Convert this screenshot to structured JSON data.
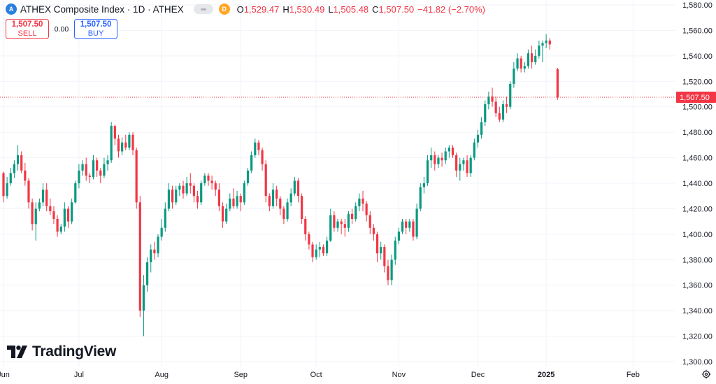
{
  "symbol": {
    "logo_icon": "athex-logo-icon",
    "title": "ATHEX Composite Index · 1D · ATHEX",
    "interval_badge": "D",
    "ohlc": {
      "o_label": "O",
      "o": "1,529.47",
      "h_label": "H",
      "h": "1,530.49",
      "l_label": "L",
      "l": "1,505.48",
      "c_label": "C",
      "c": "1,507.50",
      "change": "−41.82 (−2.70%)"
    }
  },
  "trade": {
    "sell_price": "1,507.50",
    "sell_label": "SELL",
    "spread": "0.00",
    "buy_price": "1,507.50",
    "buy_label": "BUY"
  },
  "watermark": "TradingView",
  "colors": {
    "up": "#089981",
    "down": "#f23645",
    "grid": "#f0f3fa",
    "text": "#131722",
    "brand": "#2962ff"
  },
  "chart_data": {
    "type": "candlestick",
    "title": "ATHEX Composite Index · 1D · ATHEX",
    "ylim": [
      1300,
      1580
    ],
    "y_ticks": [
      1300,
      1320,
      1340,
      1360,
      1380,
      1400,
      1420,
      1440,
      1460,
      1480,
      1500,
      1520,
      1540,
      1560,
      1580
    ],
    "y_tick_labels": [
      "1,300.00",
      "1,320.00",
      "1,340.00",
      "1,360.00",
      "1,380.00",
      "1,400.00",
      "1,420.00",
      "1,440.00",
      "1,460.00",
      "1,480.00",
      "1,500.00",
      "1,520.00",
      "1,540.00",
      "1,560.00",
      "1,580.00"
    ],
    "x_labels": [
      {
        "label": "Jun",
        "index": 0,
        "bold": false
      },
      {
        "label": "Jul",
        "index": 21,
        "bold": false
      },
      {
        "label": "Aug",
        "index": 44,
        "bold": false
      },
      {
        "label": "Sep",
        "index": 66,
        "bold": false
      },
      {
        "label": "Oct",
        "index": 87,
        "bold": false
      },
      {
        "label": "Nov",
        "index": 110,
        "bold": false
      },
      {
        "label": "Dec",
        "index": 132,
        "bold": false
      },
      {
        "label": "2025",
        "index": 151,
        "bold": true
      },
      {
        "label": "Feb",
        "index": 174,
        "bold": false
      }
    ],
    "last_price": 1507.5,
    "last_price_label": "1,507.50",
    "candles": [
      [
        1448,
        1449,
        1425,
        1430
      ],
      [
        1430,
        1445,
        1428,
        1440
      ],
      [
        1440,
        1452,
        1438,
        1448
      ],
      [
        1448,
        1458,
        1444,
        1455
      ],
      [
        1455,
        1470,
        1450,
        1462
      ],
      [
        1462,
        1465,
        1448,
        1450
      ],
      [
        1450,
        1456,
        1438,
        1442
      ],
      [
        1442,
        1444,
        1420,
        1425
      ],
      [
        1425,
        1428,
        1403,
        1408
      ],
      [
        1408,
        1425,
        1395,
        1420
      ],
      [
        1420,
        1428,
        1418,
        1425
      ],
      [
        1425,
        1440,
        1422,
        1435
      ],
      [
        1435,
        1440,
        1418,
        1422
      ],
      [
        1422,
        1428,
        1415,
        1418
      ],
      [
        1418,
        1422,
        1408,
        1412
      ],
      [
        1412,
        1415,
        1398,
        1402
      ],
      [
        1402,
        1408,
        1400,
        1406
      ],
      [
        1406,
        1425,
        1402,
        1420
      ],
      [
        1420,
        1422,
        1405,
        1410
      ],
      [
        1410,
        1428,
        1408,
        1425
      ],
      [
        1425,
        1442,
        1424,
        1440
      ],
      [
        1440,
        1455,
        1436,
        1450
      ],
      [
        1450,
        1458,
        1446,
        1455
      ],
      [
        1455,
        1460,
        1442,
        1446
      ],
      [
        1446,
        1448,
        1440,
        1445
      ],
      [
        1445,
        1462,
        1443,
        1458
      ],
      [
        1458,
        1460,
        1445,
        1450
      ],
      [
        1450,
        1452,
        1440,
        1446
      ],
      [
        1446,
        1460,
        1444,
        1455
      ],
      [
        1455,
        1462,
        1450,
        1458
      ],
      [
        1458,
        1488,
        1456,
        1485
      ],
      [
        1485,
        1486,
        1470,
        1475
      ],
      [
        1475,
        1478,
        1460,
        1465
      ],
      [
        1465,
        1476,
        1462,
        1472
      ],
      [
        1472,
        1478,
        1466,
        1468
      ],
      [
        1468,
        1480,
        1466,
        1478
      ],
      [
        1478,
        1480,
        1462,
        1466
      ],
      [
        1466,
        1468,
        1420,
        1425
      ],
      [
        1425,
        1430,
        1335,
        1340
      ],
      [
        1340,
        1368,
        1320,
        1360
      ],
      [
        1360,
        1382,
        1355,
        1378
      ],
      [
        1378,
        1392,
        1370,
        1388
      ],
      [
        1388,
        1394,
        1380,
        1385
      ],
      [
        1385,
        1400,
        1382,
        1398
      ],
      [
        1398,
        1412,
        1395,
        1405
      ],
      [
        1405,
        1425,
        1402,
        1420
      ],
      [
        1420,
        1440,
        1418,
        1435
      ],
      [
        1435,
        1438,
        1420,
        1425
      ],
      [
        1425,
        1438,
        1423,
        1435
      ],
      [
        1435,
        1440,
        1430,
        1438
      ],
      [
        1438,
        1442,
        1428,
        1432
      ],
      [
        1432,
        1445,
        1430,
        1440
      ],
      [
        1440,
        1448,
        1432,
        1438
      ],
      [
        1438,
        1440,
        1425,
        1430
      ],
      [
        1430,
        1434,
        1420,
        1425
      ],
      [
        1425,
        1442,
        1423,
        1440
      ],
      [
        1440,
        1448,
        1438,
        1446
      ],
      [
        1446,
        1448,
        1438,
        1442
      ],
      [
        1442,
        1446,
        1435,
        1440
      ],
      [
        1440,
        1442,
        1430,
        1435
      ],
      [
        1435,
        1440,
        1418,
        1422
      ],
      [
        1422,
        1425,
        1405,
        1410
      ],
      [
        1410,
        1424,
        1408,
        1420
      ],
      [
        1420,
        1432,
        1418,
        1428
      ],
      [
        1428,
        1436,
        1420,
        1422
      ],
      [
        1422,
        1434,
        1420,
        1430
      ],
      [
        1430,
        1432,
        1418,
        1425
      ],
      [
        1425,
        1442,
        1423,
        1440
      ],
      [
        1440,
        1452,
        1438,
        1450
      ],
      [
        1450,
        1465,
        1448,
        1462
      ],
      [
        1462,
        1475,
        1460,
        1472
      ],
      [
        1472,
        1474,
        1462,
        1466
      ],
      [
        1466,
        1468,
        1450,
        1455
      ],
      [
        1455,
        1458,
        1425,
        1430
      ],
      [
        1430,
        1432,
        1418,
        1422
      ],
      [
        1422,
        1440,
        1420,
        1435
      ],
      [
        1435,
        1438,
        1422,
        1428
      ],
      [
        1428,
        1430,
        1415,
        1420
      ],
      [
        1420,
        1422,
        1408,
        1412
      ],
      [
        1412,
        1428,
        1410,
        1425
      ],
      [
        1425,
        1436,
        1422,
        1432
      ],
      [
        1432,
        1445,
        1430,
        1442
      ],
      [
        1442,
        1444,
        1425,
        1430
      ],
      [
        1430,
        1432,
        1408,
        1412
      ],
      [
        1412,
        1414,
        1395,
        1400
      ],
      [
        1400,
        1402,
        1388,
        1392
      ],
      [
        1392,
        1394,
        1378,
        1382
      ],
      [
        1382,
        1392,
        1380,
        1388
      ],
      [
        1388,
        1394,
        1382,
        1390
      ],
      [
        1390,
        1392,
        1383,
        1385
      ],
      [
        1385,
        1398,
        1383,
        1395
      ],
      [
        1395,
        1420,
        1394,
        1415
      ],
      [
        1415,
        1418,
        1402,
        1405
      ],
      [
        1405,
        1412,
        1402,
        1410
      ],
      [
        1410,
        1412,
        1400,
        1408
      ],
      [
        1408,
        1412,
        1398,
        1405
      ],
      [
        1405,
        1418,
        1402,
        1416
      ],
      [
        1416,
        1420,
        1408,
        1412
      ],
      [
        1412,
        1425,
        1410,
        1422
      ],
      [
        1422,
        1432,
        1418,
        1428
      ],
      [
        1428,
        1434,
        1418,
        1424
      ],
      [
        1424,
        1426,
        1410,
        1415
      ],
      [
        1415,
        1418,
        1400,
        1405
      ],
      [
        1405,
        1408,
        1395,
        1400
      ],
      [
        1400,
        1402,
        1378,
        1385
      ],
      [
        1385,
        1394,
        1380,
        1390
      ],
      [
        1390,
        1392,
        1370,
        1375
      ],
      [
        1375,
        1380,
        1360,
        1364
      ],
      [
        1364,
        1384,
        1360,
        1380
      ],
      [
        1380,
        1398,
        1376,
        1395
      ],
      [
        1395,
        1405,
        1392,
        1402
      ],
      [
        1402,
        1412,
        1400,
        1410
      ],
      [
        1410,
        1412,
        1400,
        1405
      ],
      [
        1405,
        1412,
        1402,
        1410
      ],
      [
        1410,
        1412,
        1395,
        1398
      ],
      [
        1398,
        1424,
        1396,
        1420
      ],
      [
        1420,
        1440,
        1418,
        1437
      ],
      [
        1437,
        1445,
        1432,
        1440
      ],
      [
        1440,
        1462,
        1438,
        1458
      ],
      [
        1458,
        1468,
        1452,
        1462
      ],
      [
        1462,
        1465,
        1450,
        1455
      ],
      [
        1455,
        1462,
        1452,
        1460
      ],
      [
        1460,
        1464,
        1453,
        1458
      ],
      [
        1458,
        1468,
        1455,
        1465
      ],
      [
        1465,
        1470,
        1460,
        1468
      ],
      [
        1468,
        1470,
        1460,
        1462
      ],
      [
        1462,
        1464,
        1445,
        1450
      ],
      [
        1450,
        1460,
        1442,
        1455
      ],
      [
        1455,
        1460,
        1450,
        1458
      ],
      [
        1458,
        1462,
        1445,
        1448
      ],
      [
        1448,
        1462,
        1445,
        1460
      ],
      [
        1460,
        1475,
        1458,
        1472
      ],
      [
        1472,
        1482,
        1468,
        1478
      ],
      [
        1478,
        1492,
        1475,
        1488
      ],
      [
        1488,
        1505,
        1485,
        1502
      ],
      [
        1502,
        1512,
        1498,
        1508
      ],
      [
        1508,
        1515,
        1500,
        1504
      ],
      [
        1504,
        1508,
        1492,
        1495
      ],
      [
        1495,
        1500,
        1488,
        1490
      ],
      [
        1490,
        1505,
        1488,
        1502
      ],
      [
        1502,
        1508,
        1495,
        1500
      ],
      [
        1500,
        1520,
        1498,
        1518
      ],
      [
        1518,
        1535,
        1515,
        1530
      ],
      [
        1530,
        1542,
        1528,
        1538
      ],
      [
        1538,
        1540,
        1527,
        1530
      ],
      [
        1530,
        1535,
        1527,
        1532
      ],
      [
        1532,
        1545,
        1530,
        1542
      ],
      [
        1542,
        1548,
        1530,
        1535
      ],
      [
        1535,
        1545,
        1533,
        1540
      ],
      [
        1540,
        1552,
        1538,
        1548
      ],
      [
        1548,
        1552,
        1535,
        1550
      ],
      [
        1550,
        1557,
        1546,
        1552
      ],
      [
        1552,
        1554,
        1545,
        1549
      ],
      [
        1529.47,
        1530.49,
        1505.48,
        1507.5
      ]
    ],
    "candle_x_positions": "evenly spaced; the final two sessions follow a gap before the last candle"
  }
}
